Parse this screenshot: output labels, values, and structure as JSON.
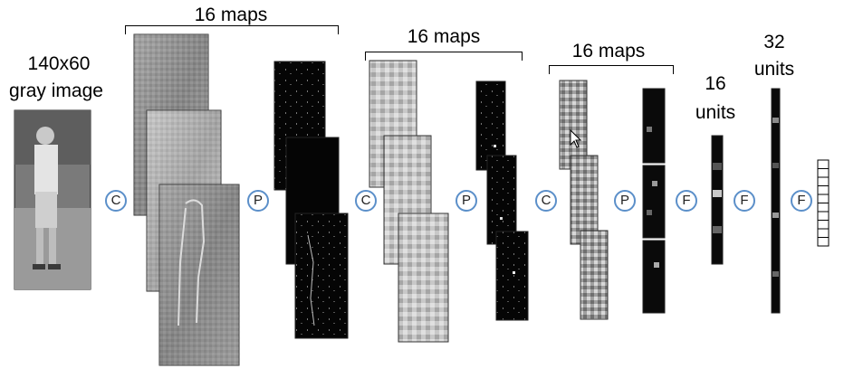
{
  "input_label_line1": "140x60",
  "input_label_line2": "gray image",
  "stage1_label": "16 maps",
  "stage2_label": "16 maps",
  "stage3_label": "16 maps",
  "fc1_label_line1": "16",
  "fc1_label_line2": "units",
  "fc2_label_line1": "32",
  "fc2_label_line2": "units",
  "ops": [
    "C",
    "P",
    "C",
    "P",
    "C",
    "P",
    "F",
    "F",
    "F"
  ],
  "op_border_color": "#5b8fc9"
}
